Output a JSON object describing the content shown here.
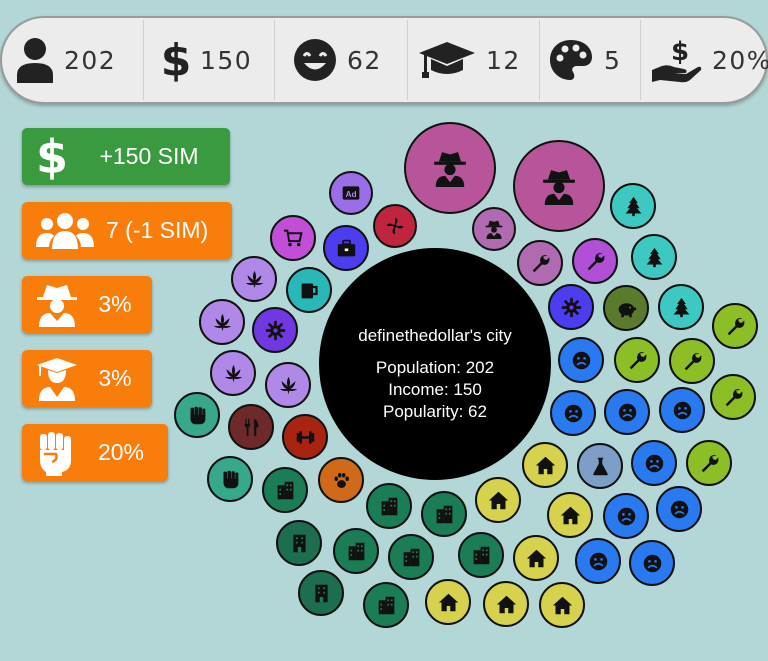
{
  "stats": {
    "population": "202",
    "income": "150",
    "happiness": "62",
    "education": "12",
    "culture": "5",
    "tax": "20%"
  },
  "actions": {
    "income_label": "+150 SIM",
    "people_label": "7 (-1 SIM)",
    "crime_label": "3%",
    "education_label": "3%",
    "protest_label": "20%"
  },
  "city": {
    "name": "definethedollar's city",
    "population": "Population: 202",
    "income": "Income: 150",
    "popularity": "Popularity: 62"
  },
  "colors": {
    "background": "#b3d6d6",
    "green_button": "#3a9a3f",
    "orange_button": "#f97d0b",
    "crime": "#b8549a",
    "nature": "#3ec8c2",
    "industry": "#8cbf26",
    "unhappy": "#2979f0",
    "housing": "#d6d24e",
    "office": "#1a7d56",
    "leisure_purple": "#b088e8"
  },
  "buildings": [
    {
      "name": "crime-hideout-large",
      "icon": "spy-icon"
    },
    {
      "name": "crime-hideout-large",
      "icon": "spy-icon"
    },
    {
      "name": "crime-hideout-small",
      "icon": "spy-icon"
    },
    {
      "name": "ad-agency",
      "icon": "ad-icon"
    },
    {
      "name": "wind-turbine",
      "icon": "pinwheel-icon"
    },
    {
      "name": "shop",
      "icon": "cart-icon"
    },
    {
      "name": "business",
      "icon": "briefcase-icon"
    },
    {
      "name": "cannabis-shop",
      "icon": "leaf-icon"
    },
    {
      "name": "bar",
      "icon": "mug-icon"
    },
    {
      "name": "workshop",
      "icon": "wrench-icon"
    },
    {
      "name": "park",
      "icon": "tree-icon"
    },
    {
      "name": "housing",
      "icon": "house-icon"
    },
    {
      "name": "unhappy-citizen",
      "icon": "sad-face-icon"
    },
    {
      "name": "office",
      "icon": "building-icon"
    },
    {
      "name": "lab",
      "icon": "flask-icon"
    },
    {
      "name": "bank",
      "icon": "piggy-bank-icon"
    },
    {
      "name": "gym",
      "icon": "dumbbell-icon"
    },
    {
      "name": "restaurant",
      "icon": "cutlery-icon"
    },
    {
      "name": "pet-shop",
      "icon": "paw-icon"
    },
    {
      "name": "protest",
      "icon": "fist-icon"
    }
  ]
}
